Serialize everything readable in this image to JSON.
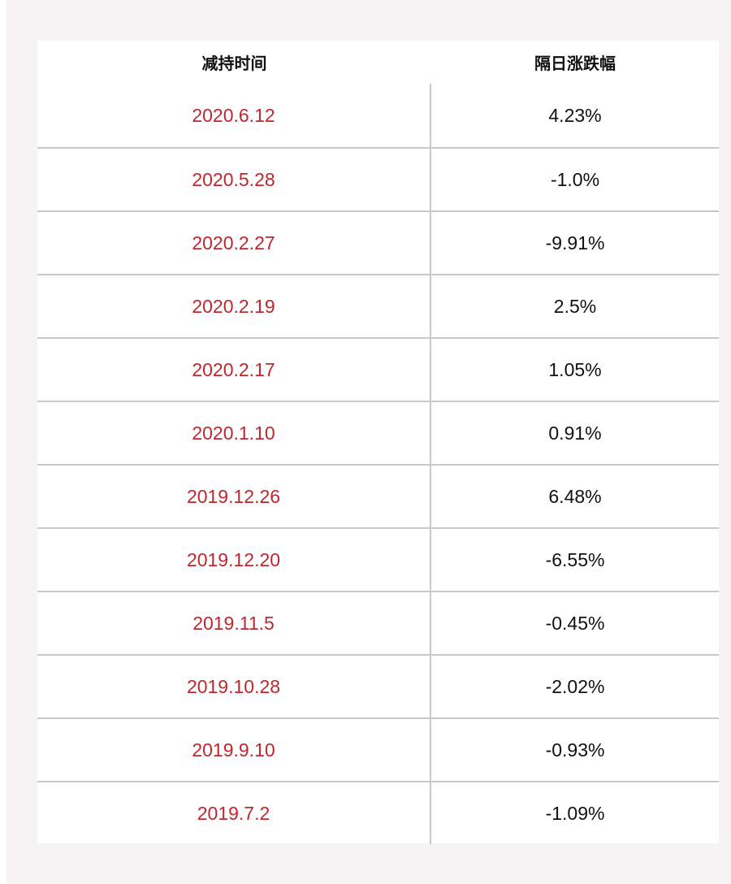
{
  "table": {
    "headers": {
      "date": "减持时间",
      "change": "隔日涨跌幅"
    },
    "rows": [
      {
        "date": "2020.6.12",
        "change": "4.23%"
      },
      {
        "date": "2020.5.28",
        "change": "-1.0%"
      },
      {
        "date": "2020.2.27",
        "change": "-9.91%"
      },
      {
        "date": "2020.2.19",
        "change": "2.5%"
      },
      {
        "date": "2020.2.17",
        "change": "1.05%"
      },
      {
        "date": "2020.1.10",
        "change": "0.91%"
      },
      {
        "date": "2019.12.26",
        "change": "6.48%"
      },
      {
        "date": "2019.12.20",
        "change": "-6.55%"
      },
      {
        "date": "2019.11.5",
        "change": "-0.45%"
      },
      {
        "date": "2019.10.28",
        "change": "-2.02%"
      },
      {
        "date": "2019.9.10",
        "change": "-0.93%"
      },
      {
        "date": "2019.7.2",
        "change": "-1.09%"
      }
    ]
  },
  "colors": {
    "date_text": "#c0272d",
    "value_text": "#111111",
    "panel_bg": "#f7f3f4",
    "divider": "#c9c9c9"
  }
}
